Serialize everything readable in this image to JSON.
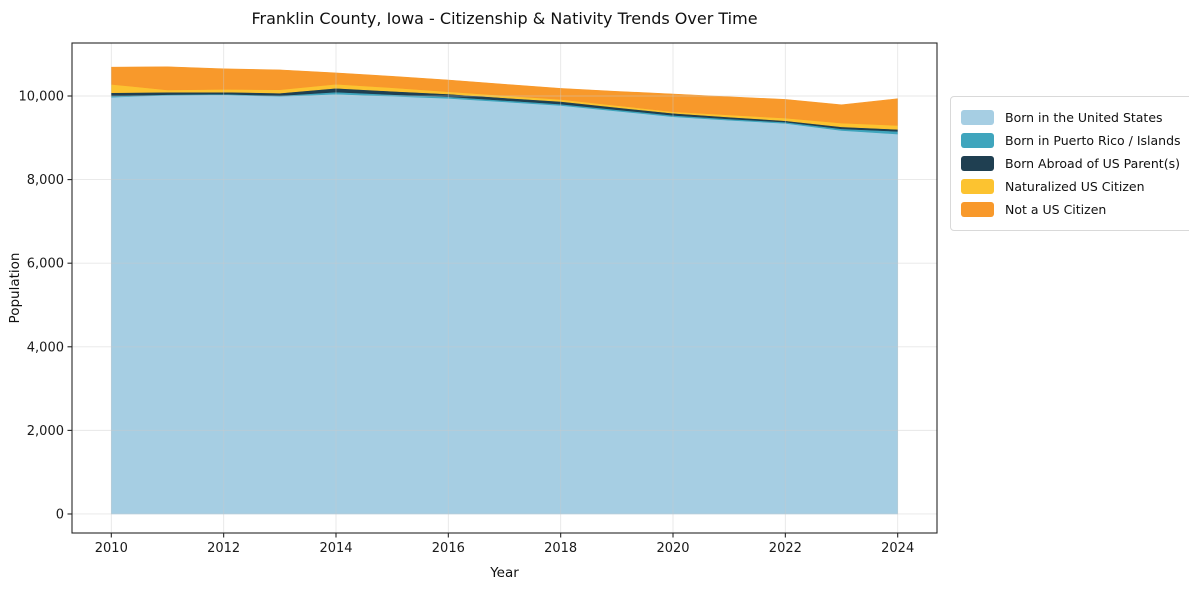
{
  "figure": {
    "background": "#ffffff",
    "frame_color": "#262626",
    "grid_color": "#c9c9c9"
  },
  "chart_data": {
    "type": "area",
    "stacked": true,
    "title": "Franklin County, Iowa - Citizenship & Nativity Trends Over Time",
    "xlabel": "Year",
    "ylabel": "Population",
    "x": [
      2010,
      2011,
      2012,
      2013,
      2014,
      2015,
      2016,
      2017,
      2018,
      2019,
      2020,
      2021,
      2022,
      2023,
      2024
    ],
    "series": [
      {
        "name": "Born in the United States",
        "color": "#a6cee3",
        "values": [
          9970,
          10020,
          10030,
          9990,
          10045,
          9995,
          9945,
          9860,
          9775,
          9640,
          9505,
          9420,
          9345,
          9175,
          9090
        ]
      },
      {
        "name": "Born in Puerto Rico / Islands",
        "color": "#3fa5bd",
        "values": [
          30,
          15,
          15,
          20,
          48,
          40,
          38,
          35,
          31,
          32,
          34,
          32,
          30,
          40,
          64
        ]
      },
      {
        "name": "Born Abroad of US Parent(s)",
        "color": "#1f3f51",
        "values": [
          80,
          55,
          50,
          60,
          95,
          80,
          65,
          60,
          65,
          55,
          48,
          45,
          34,
          48,
          48
        ]
      },
      {
        "name": "Naturalized US Citizen",
        "color": "#fcc330",
        "values": [
          200,
          55,
          65,
          80,
          95,
          85,
          55,
          55,
          48,
          45,
          38,
          50,
          63,
          88,
          95
        ]
      },
      {
        "name": "Not a US Citizen",
        "color": "#f8992b",
        "values": [
          410,
          555,
          490,
          475,
          270,
          270,
          280,
          270,
          263,
          338,
          423,
          433,
          446,
          438,
          637
        ]
      }
    ],
    "xlim": [
      2009.3,
      2024.7
    ],
    "ylim": [
      -455,
      11268
    ],
    "xticks": {
      "values": [
        2010,
        2012,
        2014,
        2016,
        2018,
        2020,
        2022,
        2024
      ],
      "labels": [
        "2010",
        "2012",
        "2014",
        "2016",
        "2018",
        "2020",
        "2022",
        "2024"
      ]
    },
    "yticks": {
      "values": [
        0,
        2000,
        4000,
        6000,
        8000,
        10000
      ],
      "labels": [
        "0",
        "2,000",
        "4,000",
        "6,000",
        "8,000",
        "10,000"
      ]
    },
    "grid": true,
    "legend_position": "right-outside"
  }
}
